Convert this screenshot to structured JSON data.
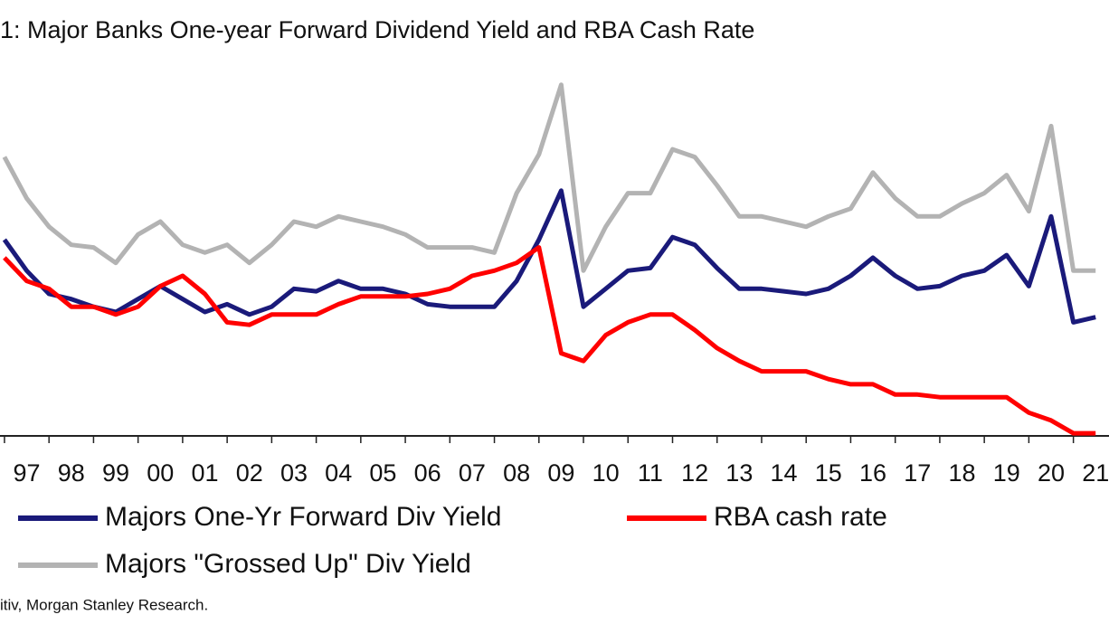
{
  "chart_data": {
    "type": "line",
    "title": "1:  Major Banks One-year Forward Dividend Yield and RBA Cash Rate",
    "source": "itiv, Morgan Stanley Research.",
    "x": [
      1996.5,
      1997,
      1997.5,
      1998,
      1998.5,
      1999,
      1999.5,
      2000,
      2000.5,
      2001,
      2001.5,
      2002,
      2002.5,
      2003,
      2003.5,
      2004,
      2004.5,
      2005,
      2005.5,
      2006,
      2006.5,
      2007,
      2007.5,
      2008,
      2008.5,
      2009,
      2009.5,
      2010,
      2010.5,
      2011,
      2011.5,
      2012,
      2012.5,
      2013,
      2013.5,
      2014,
      2014.5,
      2015,
      2015.5,
      2016,
      2016.5,
      2017,
      2017.5,
      2018,
      2018.5,
      2019,
      2019.5,
      2020,
      2020.5,
      2021
    ],
    "series": [
      {
        "name": "Majors \"Grossed Up\" Div Yield",
        "color": "#b3b3b3",
        "values": [
          10.8,
          9.2,
          8.1,
          7.4,
          7.3,
          6.7,
          7.8,
          8.3,
          7.4,
          7.1,
          7.4,
          6.7,
          7.4,
          8.3,
          8.1,
          8.5,
          8.3,
          8.1,
          7.8,
          7.3,
          7.3,
          7.3,
          7.1,
          9.4,
          10.9,
          13.6,
          6.4,
          8.1,
          9.4,
          9.4,
          11.1,
          10.8,
          9.7,
          8.5,
          8.5,
          8.3,
          8.1,
          8.5,
          8.8,
          10.2,
          9.2,
          8.5,
          8.5,
          9.0,
          9.4,
          10.1,
          8.7,
          12.0,
          6.4,
          6.4
        ]
      },
      {
        "name": "Majors One-Yr Forward Div Yield",
        "color": "#1a1a7a",
        "values": [
          7.6,
          6.4,
          5.5,
          5.3,
          5.0,
          4.8,
          5.3,
          5.8,
          5.3,
          4.8,
          5.1,
          4.7,
          5.0,
          5.7,
          5.6,
          6.0,
          5.7,
          5.7,
          5.5,
          5.1,
          5.0,
          5.0,
          5.0,
          6.0,
          7.6,
          9.5,
          5.0,
          5.7,
          6.4,
          6.5,
          7.7,
          7.4,
          6.5,
          5.7,
          5.7,
          5.6,
          5.5,
          5.7,
          6.2,
          6.9,
          6.2,
          5.7,
          5.8,
          6.2,
          6.4,
          7.0,
          5.8,
          8.5,
          4.4,
          4.6
        ]
      },
      {
        "name": "RBA cash rate",
        "color": "#ff0000",
        "values": [
          6.9,
          6.0,
          5.7,
          5.0,
          5.0,
          4.7,
          5.0,
          5.8,
          6.2,
          5.5,
          4.4,
          4.3,
          4.7,
          4.7,
          4.7,
          5.1,
          5.4,
          5.4,
          5.4,
          5.5,
          5.7,
          6.2,
          6.4,
          6.7,
          7.3,
          3.2,
          2.9,
          3.9,
          4.4,
          4.7,
          4.7,
          4.1,
          3.4,
          2.9,
          2.5,
          2.5,
          2.5,
          2.2,
          2.0,
          2.0,
          1.6,
          1.6,
          1.5,
          1.5,
          1.5,
          1.5,
          0.9,
          0.6,
          0.1,
          0.1
        ]
      }
    ],
    "xlim": [
      1996.4,
      2021.3
    ],
    "xticks": [
      {
        "value": 1997,
        "label": "97"
      },
      {
        "value": 1998,
        "label": "98"
      },
      {
        "value": 1999,
        "label": "99"
      },
      {
        "value": 2000,
        "label": "00"
      },
      {
        "value": 2001,
        "label": "01"
      },
      {
        "value": 2002,
        "label": "02"
      },
      {
        "value": 2003,
        "label": "03"
      },
      {
        "value": 2004,
        "label": "04"
      },
      {
        "value": 2005,
        "label": "05"
      },
      {
        "value": 2006,
        "label": "06"
      },
      {
        "value": 2007,
        "label": "07"
      },
      {
        "value": 2008,
        "label": "08"
      },
      {
        "value": 2009,
        "label": "09"
      },
      {
        "value": 2010,
        "label": "10"
      },
      {
        "value": 2011,
        "label": "11"
      },
      {
        "value": 2012,
        "label": "12"
      },
      {
        "value": 2013,
        "label": "13"
      },
      {
        "value": 2014,
        "label": "14"
      },
      {
        "value": 2015,
        "label": "15"
      },
      {
        "value": 2016,
        "label": "16"
      },
      {
        "value": 2017,
        "label": "17"
      },
      {
        "value": 2018,
        "label": "18"
      },
      {
        "value": 2019,
        "label": "19"
      },
      {
        "value": 2020,
        "label": "20"
      },
      {
        "value": 2021,
        "label": "21"
      }
    ],
    "ylim": [
      0,
      14.5
    ]
  }
}
